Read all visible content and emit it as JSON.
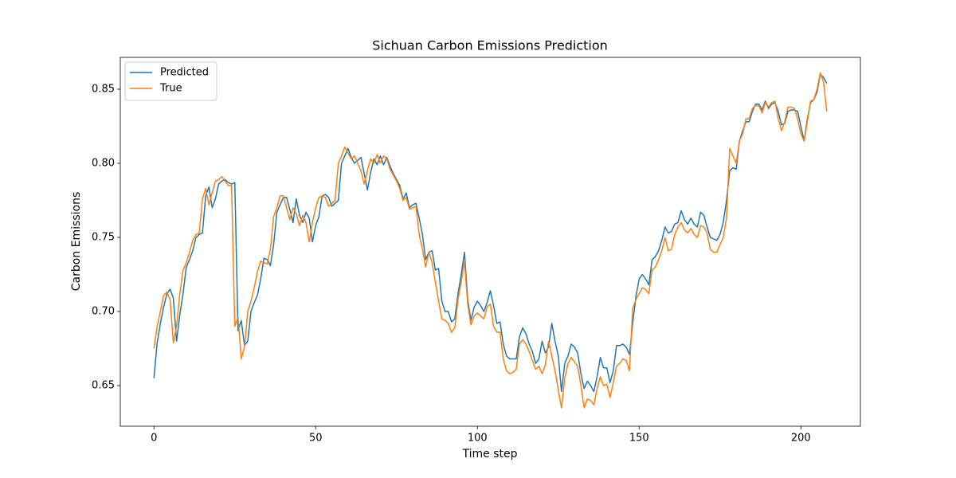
{
  "chart_data": {
    "type": "line",
    "title": "Sichuan Carbon Emissions Prediction",
    "x_label": "Time step",
    "y_label": "Carbon Emissions",
    "x": [
      0,
      1,
      2,
      3,
      4,
      5,
      6,
      7,
      8,
      9,
      10,
      11,
      12,
      13,
      14,
      15,
      16,
      17,
      18,
      19,
      20,
      21,
      22,
      23,
      24,
      25,
      26,
      27,
      28,
      29,
      30,
      31,
      32,
      33,
      34,
      35,
      36,
      37,
      38,
      39,
      40,
      41,
      42,
      43,
      44,
      45,
      46,
      47,
      48,
      49,
      50,
      51,
      52,
      53,
      54,
      55,
      56,
      57,
      58,
      59,
      60,
      61,
      62,
      63,
      64,
      65,
      66,
      67,
      68,
      69,
      70,
      71,
      72,
      73,
      74,
      75,
      76,
      77,
      78,
      79,
      80,
      81,
      82,
      83,
      84,
      85,
      86,
      87,
      88,
      89,
      90,
      91,
      92,
      93,
      94,
      95,
      96,
      97,
      98,
      99,
      100,
      101,
      102,
      103,
      104,
      105,
      106,
      107,
      108,
      109,
      110,
      111,
      112,
      113,
      114,
      115,
      116,
      117,
      118,
      119,
      120,
      121,
      122,
      123,
      124,
      125,
      126,
      127,
      128,
      129,
      130,
      131,
      132,
      133,
      134,
      135,
      136,
      137,
      138,
      139,
      140,
      141,
      142,
      143,
      144,
      145,
      146,
      147,
      148,
      149,
      150,
      151,
      152,
      153,
      154,
      155,
      156,
      157,
      158,
      159,
      160,
      161,
      162,
      163,
      164,
      165,
      166,
      167,
      168,
      169,
      170,
      171,
      172,
      173,
      174,
      175,
      176,
      177,
      178,
      179,
      180,
      181,
      182,
      183,
      184,
      185,
      186,
      187,
      188,
      189,
      190,
      191,
      192,
      193,
      194,
      195,
      196,
      197,
      198,
      199,
      200,
      201,
      202,
      203,
      204,
      205,
      206,
      207,
      208
    ],
    "series": [
      {
        "name": "Predicted",
        "color": "#1f77b4",
        "values": [
          0.655,
          0.679,
          0.692,
          0.703,
          0.712,
          0.715,
          0.709,
          0.68,
          0.698,
          0.712,
          0.73,
          0.735,
          0.741,
          0.75,
          0.752,
          0.753,
          0.778,
          0.784,
          0.77,
          0.776,
          0.786,
          0.788,
          0.789,
          0.787,
          0.786,
          0.787,
          0.687,
          0.694,
          0.677,
          0.68,
          0.7,
          0.706,
          0.711,
          0.722,
          0.736,
          0.735,
          0.731,
          0.745,
          0.767,
          0.772,
          0.777,
          0.777,
          0.769,
          0.76,
          0.776,
          0.765,
          0.76,
          0.767,
          0.763,
          0.747,
          0.758,
          0.764,
          0.778,
          0.779,
          0.777,
          0.771,
          0.773,
          0.775,
          0.8,
          0.805,
          0.81,
          0.804,
          0.8,
          0.802,
          0.804,
          0.793,
          0.782,
          0.794,
          0.803,
          0.799,
          0.805,
          0.799,
          0.804,
          0.798,
          0.793,
          0.789,
          0.785,
          0.776,
          0.78,
          0.77,
          0.772,
          0.773,
          0.763,
          0.752,
          0.735,
          0.74,
          0.741,
          0.728,
          0.729,
          0.707,
          0.7,
          0.7,
          0.693,
          0.695,
          0.712,
          0.725,
          0.74,
          0.708,
          0.694,
          0.703,
          0.707,
          0.704,
          0.7,
          0.706,
          0.714,
          0.704,
          0.692,
          0.693,
          0.678,
          0.67,
          0.668,
          0.668,
          0.668,
          0.683,
          0.689,
          0.685,
          0.678,
          0.673,
          0.665,
          0.668,
          0.68,
          0.672,
          0.676,
          0.692,
          0.68,
          0.67,
          0.646,
          0.665,
          0.67,
          0.678,
          0.676,
          0.672,
          0.658,
          0.648,
          0.653,
          0.65,
          0.646,
          0.656,
          0.669,
          0.662,
          0.662,
          0.652,
          0.66,
          0.677,
          0.677,
          0.678,
          0.676,
          0.671,
          0.692,
          0.71,
          0.722,
          0.725,
          0.722,
          0.718,
          0.735,
          0.737,
          0.741,
          0.748,
          0.757,
          0.753,
          0.754,
          0.759,
          0.76,
          0.768,
          0.762,
          0.759,
          0.763,
          0.759,
          0.757,
          0.767,
          0.765,
          0.757,
          0.75,
          0.749,
          0.748,
          0.752,
          0.76,
          0.775,
          0.795,
          0.797,
          0.796,
          0.815,
          0.822,
          0.828,
          0.828,
          0.835,
          0.84,
          0.84,
          0.836,
          0.842,
          0.837,
          0.84,
          0.841,
          0.835,
          0.826,
          0.827,
          0.835,
          0.836,
          0.836,
          0.835,
          0.825,
          0.815,
          0.83,
          0.841,
          0.843,
          0.848,
          0.86,
          0.858,
          0.854
        ]
      },
      {
        "name": "True",
        "color": "#ff7f0e",
        "values": [
          0.675,
          0.69,
          0.7,
          0.711,
          0.713,
          0.708,
          0.679,
          0.69,
          0.712,
          0.728,
          0.733,
          0.74,
          0.748,
          0.752,
          0.753,
          0.776,
          0.783,
          0.772,
          0.78,
          0.788,
          0.789,
          0.791,
          0.788,
          0.785,
          0.785,
          0.69,
          0.696,
          0.668,
          0.676,
          0.7,
          0.707,
          0.716,
          0.727,
          0.734,
          0.733,
          0.732,
          0.742,
          0.764,
          0.77,
          0.778,
          0.778,
          0.77,
          0.762,
          0.77,
          0.766,
          0.758,
          0.765,
          0.76,
          0.747,
          0.76,
          0.77,
          0.777,
          0.778,
          0.777,
          0.771,
          0.773,
          0.775,
          0.8,
          0.805,
          0.811,
          0.807,
          0.803,
          0.805,
          0.8,
          0.795,
          0.786,
          0.795,
          0.803,
          0.8,
          0.806,
          0.8,
          0.805,
          0.803,
          0.796,
          0.792,
          0.788,
          0.783,
          0.775,
          0.777,
          0.769,
          0.77,
          0.771,
          0.752,
          0.742,
          0.73,
          0.74,
          0.733,
          0.72,
          0.707,
          0.695,
          0.694,
          0.692,
          0.686,
          0.689,
          0.708,
          0.72,
          0.734,
          0.705,
          0.691,
          0.697,
          0.699,
          0.697,
          0.695,
          0.703,
          0.705,
          0.69,
          0.686,
          0.686,
          0.668,
          0.66,
          0.658,
          0.659,
          0.661,
          0.678,
          0.681,
          0.678,
          0.673,
          0.667,
          0.661,
          0.663,
          0.658,
          0.664,
          0.68,
          0.67,
          0.66,
          0.647,
          0.635,
          0.655,
          0.665,
          0.669,
          0.666,
          0.663,
          0.65,
          0.635,
          0.641,
          0.64,
          0.637,
          0.648,
          0.656,
          0.65,
          0.651,
          0.642,
          0.652,
          0.663,
          0.665,
          0.668,
          0.667,
          0.66,
          0.702,
          0.708,
          0.712,
          0.716,
          0.715,
          0.712,
          0.728,
          0.73,
          0.735,
          0.741,
          0.75,
          0.741,
          0.742,
          0.752,
          0.757,
          0.76,
          0.755,
          0.753,
          0.756,
          0.752,
          0.75,
          0.758,
          0.757,
          0.753,
          0.742,
          0.74,
          0.74,
          0.745,
          0.75,
          0.763,
          0.81,
          0.805,
          0.8,
          0.815,
          0.82,
          0.83,
          0.83,
          0.837,
          0.839,
          0.839,
          0.834,
          0.841,
          0.838,
          0.841,
          0.842,
          0.83,
          0.822,
          0.828,
          0.838,
          0.838,
          0.837,
          0.83,
          0.82,
          0.815,
          0.828,
          0.842,
          0.843,
          0.85,
          0.861,
          0.855,
          0.835
        ]
      }
    ],
    "xlim": [
      -10.4,
      218.4
    ],
    "xticks": [
      0,
      50,
      100,
      150,
      200
    ],
    "ylim": [
      0.6226,
      0.8715
    ],
    "yticks": [
      0.65,
      {
        "value": 0.7,
        "label": "0.70"
      },
      0.75,
      {
        "value": 0.8,
        "label": "0.80"
      },
      0.85
    ],
    "grid": false,
    "legend": "upper left"
  }
}
